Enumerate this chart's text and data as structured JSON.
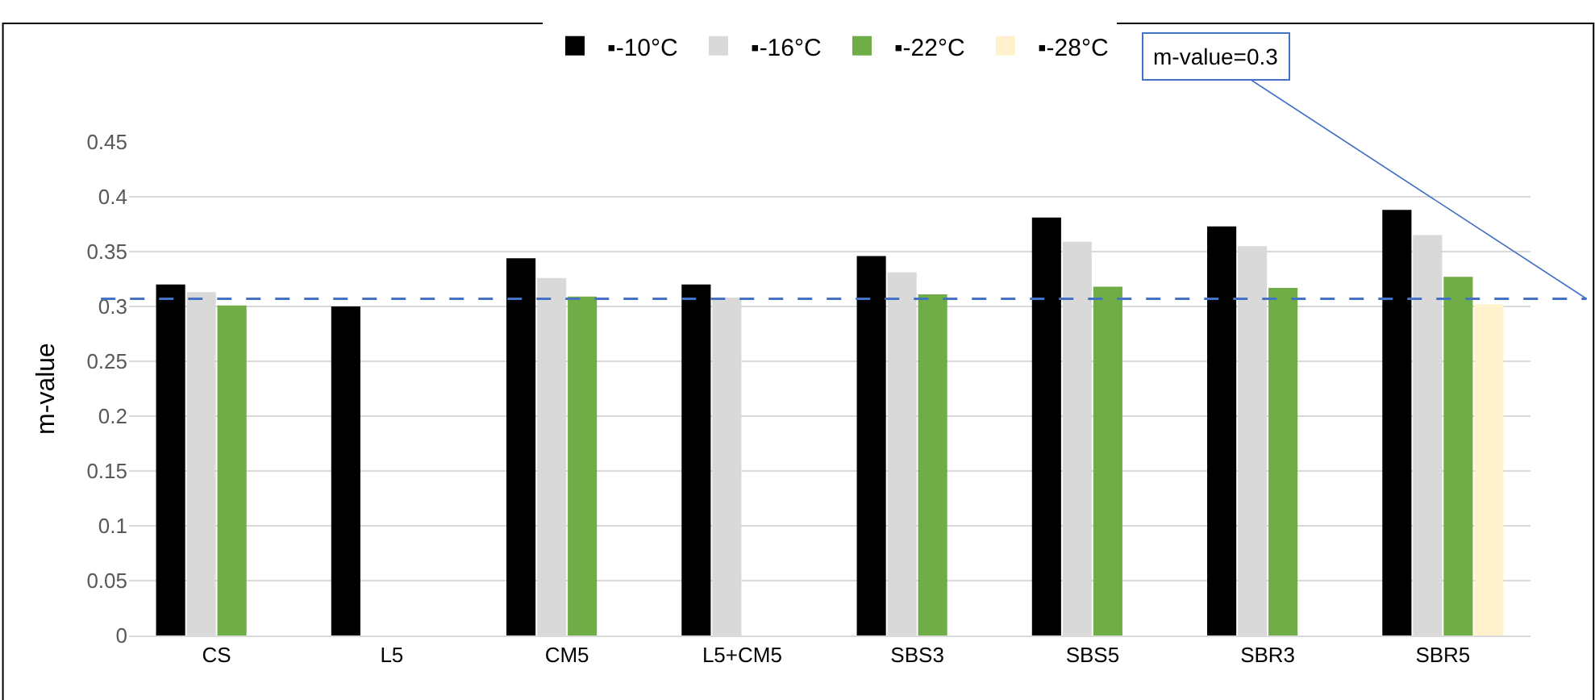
{
  "chart_data": {
    "type": "bar",
    "ylabel": "m-value",
    "categories": [
      "CS",
      "L5",
      "CM5",
      "L5+CM5",
      "SBS3",
      "SBS5",
      "SBR3",
      "SBR5"
    ],
    "series": [
      {
        "name": "▪-10°C",
        "color": "#000000",
        "values": [
          0.32,
          0.3,
          0.344,
          0.32,
          0.346,
          0.381,
          0.373,
          0.388
        ]
      },
      {
        "name": "▪-16°C",
        "color": "#d9d9d9",
        "values": [
          0.313,
          null,
          0.326,
          0.308,
          0.331,
          0.359,
          0.355,
          0.365
        ]
      },
      {
        "name": "▪-22°C",
        "color": "#70ad47",
        "values": [
          0.301,
          null,
          0.309,
          null,
          0.311,
          0.318,
          0.317,
          0.327
        ]
      },
      {
        "name": "▪-28°C",
        "color": "#fff2cc",
        "values": [
          null,
          null,
          null,
          null,
          null,
          null,
          null,
          0.302
        ]
      }
    ],
    "ylim": [
      0,
      0.45
    ],
    "yticks": [
      0,
      0.05,
      0.1,
      0.15,
      0.2,
      0.25,
      0.3,
      0.35,
      0.4,
      0.45
    ],
    "grid": "y",
    "legend": "top",
    "ref_lines": [
      {
        "axis": "y",
        "value": 0.307,
        "label": "m-value=0.3",
        "color": "#4472c4",
        "line_style": "dashed"
      }
    ]
  }
}
